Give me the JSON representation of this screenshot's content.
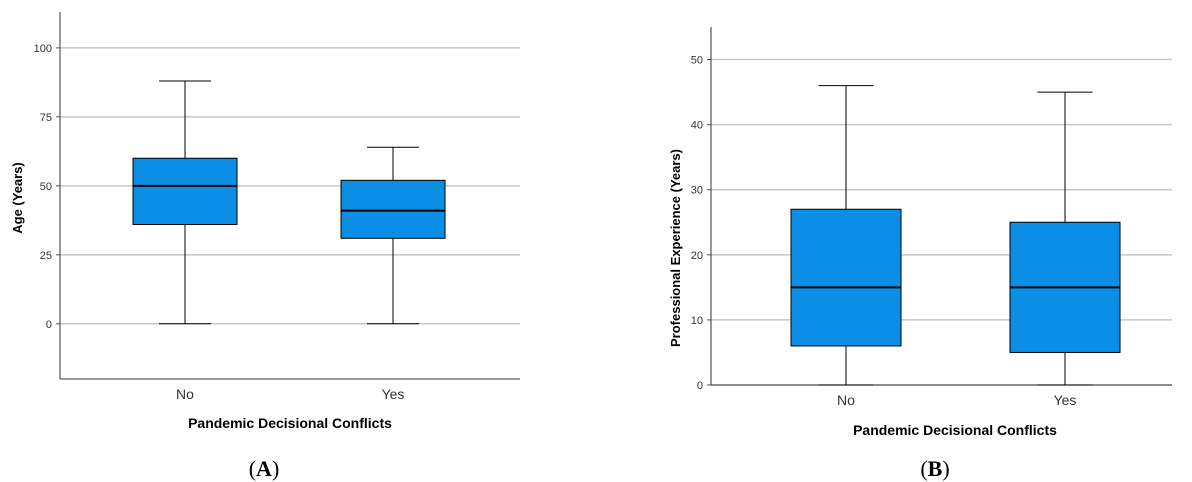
{
  "colors": {
    "box_fill": "#0b8fe6",
    "grid": "#c8c8c8",
    "stroke": "#000000"
  },
  "chart_data": [
    {
      "type": "box",
      "panel_label": "A",
      "xlabel": "Pandemic Decisional Conflicts",
      "ylabel": "Age (Years)",
      "categories": [
        "No",
        "Yes"
      ],
      "ylim": [
        -20,
        113
      ],
      "yticks": [
        0,
        25,
        50,
        75,
        100
      ],
      "grid": true,
      "boxes": [
        {
          "category": "No",
          "min": 0,
          "q1": 36,
          "median": 50,
          "q3": 60,
          "max": 88
        },
        {
          "category": "Yes",
          "min": 0,
          "q1": 31,
          "median": 41,
          "q3": 52,
          "max": 64
        }
      ]
    },
    {
      "type": "box",
      "panel_label": "B",
      "xlabel": "Pandemic Decisional Conflicts",
      "ylabel": "Professional Experience (Years)",
      "categories": [
        "No",
        "Yes"
      ],
      "ylim": [
        0,
        55
      ],
      "yticks": [
        0,
        10,
        20,
        30,
        40,
        50
      ],
      "grid": true,
      "boxes": [
        {
          "category": "No",
          "min": 0,
          "q1": 6,
          "median": 15,
          "q3": 27,
          "max": 46
        },
        {
          "category": "Yes",
          "min": 0,
          "q1": 5,
          "median": 15,
          "q3": 25,
          "max": 45
        }
      ]
    }
  ]
}
